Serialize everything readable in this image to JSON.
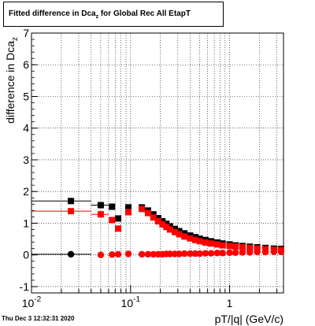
{
  "footer": {
    "timestamp": "Thu Dec  3 12:32:31 2020"
  },
  "chart_data": {
    "type": "scatter",
    "title_main": "Fitted difference in Dca",
    "title_sub": "z",
    "title_tail": " for Global Rec All EtapT",
    "xlabel": "pT/|q| (GeV/c)",
    "ylabel_main": "difference in Dca",
    "ylabel_sub": "z",
    "xscale": "log",
    "xlim": [
      0.01,
      3.5
    ],
    "ylim": [
      -1.2,
      7
    ],
    "grid": true,
    "x_ticks": [
      {
        "value": 0.01,
        "label": "10",
        "exp": "-2"
      },
      {
        "value": 0.1,
        "label": "10",
        "exp": "-1"
      },
      {
        "value": 1,
        "label": "1",
        "exp": ""
      }
    ],
    "y_ticks": [
      -1,
      0,
      1,
      2,
      3,
      4,
      5,
      6,
      7
    ],
    "series": [
      {
        "marker": "square",
        "color": "#000000",
        "points": [
          {
            "x": 0.025,
            "y": 1.7,
            "xlo": 0.01,
            "xhi": 0.04
          },
          {
            "x": 0.05,
            "y": 1.57,
            "xlo": 0.04,
            "xhi": 0.06
          },
          {
            "x": 0.065,
            "y": 1.52
          },
          {
            "x": 0.075,
            "y": 1.15
          },
          {
            "x": 0.095,
            "y": 1.5
          },
          {
            "x": 0.13,
            "y": 1.5
          },
          {
            "x": 0.15,
            "y": 1.4
          },
          {
            "x": 0.17,
            "y": 1.28
          },
          {
            "x": 0.19,
            "y": 1.16
          },
          {
            "x": 0.21,
            "y": 1.06
          },
          {
            "x": 0.23,
            "y": 0.98
          },
          {
            "x": 0.25,
            "y": 0.9
          },
          {
            "x": 0.28,
            "y": 0.82
          },
          {
            "x": 0.31,
            "y": 0.75
          },
          {
            "x": 0.35,
            "y": 0.68
          },
          {
            "x": 0.4,
            "y": 0.61
          },
          {
            "x": 0.45,
            "y": 0.56
          },
          {
            "x": 0.5,
            "y": 0.51
          },
          {
            "x": 0.57,
            "y": 0.47
          },
          {
            "x": 0.65,
            "y": 0.43
          },
          {
            "x": 0.75,
            "y": 0.39
          },
          {
            "x": 0.85,
            "y": 0.36
          },
          {
            "x": 1.0,
            "y": 0.33
          },
          {
            "x": 1.15,
            "y": 0.3
          },
          {
            "x": 1.35,
            "y": 0.28
          },
          {
            "x": 1.6,
            "y": 0.26
          },
          {
            "x": 1.9,
            "y": 0.24
          },
          {
            "x": 2.3,
            "y": 0.22
          },
          {
            "x": 2.8,
            "y": 0.2
          },
          {
            "x": 3.3,
            "y": 0.19
          }
        ]
      },
      {
        "marker": "square",
        "color": "#ff0000",
        "points": [
          {
            "x": 0.025,
            "y": 1.38,
            "xlo": 0.01,
            "xhi": 0.04
          },
          {
            "x": 0.05,
            "y": 1.28,
            "xlo": 0.04,
            "xhi": 0.06
          },
          {
            "x": 0.065,
            "y": 1.1
          },
          {
            "x": 0.075,
            "y": 0.83
          },
          {
            "x": 0.095,
            "y": 1.35
          },
          {
            "x": 0.13,
            "y": 1.45
          },
          {
            "x": 0.15,
            "y": 1.32
          },
          {
            "x": 0.17,
            "y": 1.18
          },
          {
            "x": 0.19,
            "y": 1.06
          },
          {
            "x": 0.21,
            "y": 0.96
          },
          {
            "x": 0.23,
            "y": 0.88
          },
          {
            "x": 0.25,
            "y": 0.8
          },
          {
            "x": 0.28,
            "y": 0.72
          },
          {
            "x": 0.31,
            "y": 0.65
          },
          {
            "x": 0.35,
            "y": 0.58
          },
          {
            "x": 0.4,
            "y": 0.52
          },
          {
            "x": 0.45,
            "y": 0.47
          },
          {
            "x": 0.5,
            "y": 0.43
          },
          {
            "x": 0.57,
            "y": 0.39
          },
          {
            "x": 0.65,
            "y": 0.36
          },
          {
            "x": 0.75,
            "y": 0.33
          },
          {
            "x": 0.85,
            "y": 0.3
          },
          {
            "x": 1.0,
            "y": 0.28
          },
          {
            "x": 1.15,
            "y": 0.26
          },
          {
            "x": 1.35,
            "y": 0.24
          },
          {
            "x": 1.6,
            "y": 0.22
          },
          {
            "x": 1.9,
            "y": 0.2
          },
          {
            "x": 2.3,
            "y": 0.18
          },
          {
            "x": 2.8,
            "y": 0.16
          },
          {
            "x": 3.3,
            "y": 0.15
          }
        ]
      },
      {
        "marker": "circle",
        "color": "#000000",
        "points": [
          {
            "x": 0.025,
            "y": 0.02,
            "xlo": 0.01,
            "xhi": 0.04
          }
        ]
      },
      {
        "marker": "circle",
        "color": "#ff0000",
        "points": [
          {
            "x": 0.05,
            "y": 0.0
          },
          {
            "x": 0.065,
            "y": 0.01
          },
          {
            "x": 0.075,
            "y": 0.02
          },
          {
            "x": 0.095,
            "y": 0.03
          },
          {
            "x": 0.13,
            "y": 0.02
          },
          {
            "x": 0.15,
            "y": 0.02
          },
          {
            "x": 0.17,
            "y": 0.02
          },
          {
            "x": 0.19,
            "y": 0.02
          },
          {
            "x": 0.21,
            "y": 0.02
          },
          {
            "x": 0.23,
            "y": 0.03
          },
          {
            "x": 0.25,
            "y": 0.03
          },
          {
            "x": 0.28,
            "y": 0.03
          },
          {
            "x": 0.31,
            "y": 0.03
          },
          {
            "x": 0.35,
            "y": 0.04
          },
          {
            "x": 0.4,
            "y": 0.04
          },
          {
            "x": 0.45,
            "y": 0.04
          },
          {
            "x": 0.5,
            "y": 0.04
          },
          {
            "x": 0.57,
            "y": 0.05
          },
          {
            "x": 0.65,
            "y": 0.05
          },
          {
            "x": 0.75,
            "y": 0.06
          },
          {
            "x": 0.85,
            "y": 0.06
          },
          {
            "x": 1.0,
            "y": 0.07
          },
          {
            "x": 1.15,
            "y": 0.07
          },
          {
            "x": 1.35,
            "y": 0.08
          },
          {
            "x": 1.6,
            "y": 0.08
          },
          {
            "x": 1.9,
            "y": 0.09
          },
          {
            "x": 2.3,
            "y": 0.09
          },
          {
            "x": 2.8,
            "y": 0.1
          },
          {
            "x": 3.3,
            "y": 0.1
          }
        ]
      }
    ]
  }
}
